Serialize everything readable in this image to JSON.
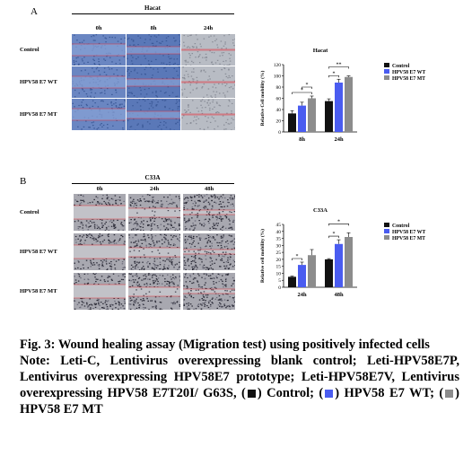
{
  "panelA": {
    "letter": "A",
    "title": "Hacat",
    "timepoints": [
      "0h",
      "8h",
      "24h"
    ],
    "rows": [
      "Control",
      "HPV58 E7 WT",
      "HPV58 E7 MT"
    ]
  },
  "panelB": {
    "letter": "B",
    "title": "C33A",
    "timepoints": [
      "0h",
      "24h",
      "48h"
    ],
    "rows": [
      "Control",
      "HPV58 E7 WT",
      "HPV58 E7 MT"
    ]
  },
  "colors": {
    "control": "#111111",
    "wt": "#4a5cf0",
    "mt": "#8c8c8c"
  },
  "chart_data": [
    {
      "type": "bar",
      "title": "Hacat",
      "ylabel": "Relative Cell mobility (%)",
      "categories": [
        "8h",
        "24h"
      ],
      "ylim": [
        0,
        120
      ],
      "yticks": [
        0,
        20,
        40,
        60,
        80,
        100,
        120
      ],
      "series": [
        {
          "name": "Control",
          "values": [
            33,
            55
          ],
          "errors": [
            5,
            4
          ]
        },
        {
          "name": "HPV58 E7 WT",
          "values": [
            47,
            88
          ],
          "errors": [
            6,
            6
          ]
        },
        {
          "name": "HPV58 E7 MT",
          "values": [
            60,
            98
          ],
          "errors": [
            4,
            2
          ]
        }
      ],
      "significance": [
        {
          "group": 0,
          "from": 0,
          "to": 2,
          "label": "*"
        },
        {
          "group": 0,
          "from": 1,
          "to": 2,
          "label": "*"
        },
        {
          "group": 1,
          "from": 0,
          "to": 1,
          "label": "*"
        },
        {
          "group": 1,
          "from": 0,
          "to": 2,
          "label": "**"
        }
      ],
      "legend_position": "top-right"
    },
    {
      "type": "bar",
      "title": "C33A",
      "ylabel": "Relative cell mobility (%)",
      "categories": [
        "24h",
        "48h"
      ],
      "ylim": [
        0,
        45
      ],
      "yticks": [
        0,
        5,
        10,
        15,
        20,
        25,
        30,
        35,
        40,
        45
      ],
      "series": [
        {
          "name": "Control",
          "values": [
            7.5,
            20
          ],
          "errors": [
            0.5,
            0.5
          ]
        },
        {
          "name": "HPV58 E7 WT",
          "values": [
            16,
            31
          ],
          "errors": [
            2,
            3
          ]
        },
        {
          "name": "HPV58 E7 MT",
          "values": [
            23,
            36
          ],
          "errors": [
            4,
            3
          ]
        }
      ],
      "significance": [
        {
          "group": 0,
          "from": 0,
          "to": 1,
          "label": "*"
        },
        {
          "group": 1,
          "from": 0,
          "to": 1,
          "label": "*"
        },
        {
          "group": 1,
          "from": 0,
          "to": 2,
          "label": "*"
        }
      ],
      "legend_position": "top-right"
    }
  ],
  "caption": {
    "fig_line": "Fig. 3: Wound healing assay (Migration test) using positively infected cells",
    "note_text": "Note: Leti-C, Lentivirus overexpressing blank control; Leti-HPV58E7P, Lentivirus overexpressing HPV58E7 prototype; Leti-HPV58E7V, Lentivirus overexpressing HPV58 E7T20I/ G63S,",
    "legend_open": "(",
    "legend_control": ") Control; (",
    "legend_wt": ") HPV58 E7 WT; (",
    "legend_mt": ") HPV58 E7 MT"
  }
}
